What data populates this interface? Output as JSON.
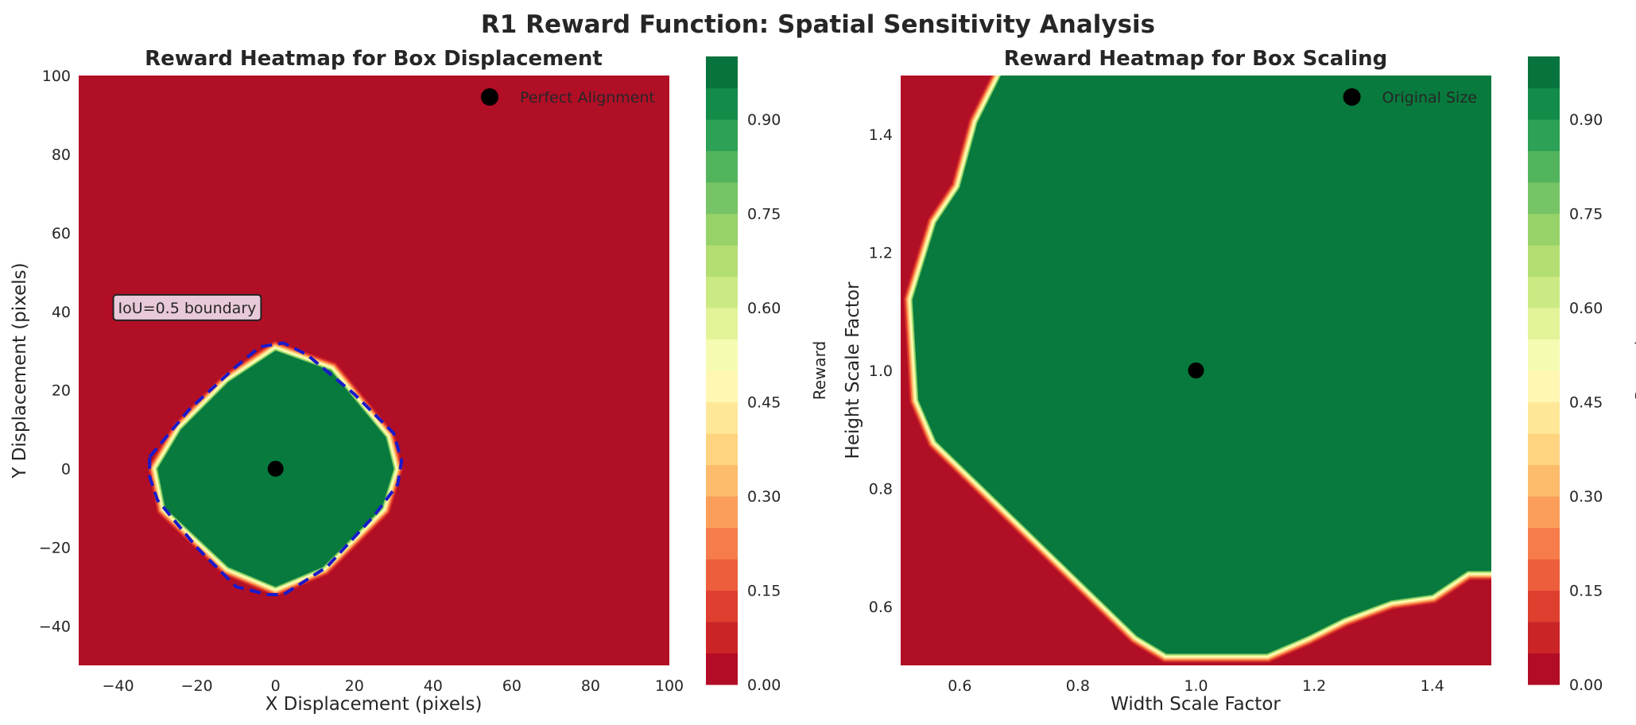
{
  "figure": {
    "title": "R1 Reward Function: Spatial Sensitivity Analysis"
  },
  "colorbar": {
    "label": "Reward",
    "ticks": [
      "0.00",
      "0.15",
      "0.30",
      "0.45",
      "0.60",
      "0.75",
      "0.90"
    ],
    "tick_values": [
      0.0,
      0.15,
      0.3,
      0.45,
      0.6,
      0.75,
      0.9
    ],
    "range": [
      0,
      1
    ],
    "levels": 20
  },
  "colors": {
    "red": "#b10f26",
    "green": "#087a3d",
    "boundary": "#1a1acc",
    "marker": "#000000",
    "colormap": "RdYlGn"
  },
  "chart_data": [
    {
      "type": "heatmap",
      "title": "Reward Heatmap for Box Displacement",
      "xlabel": "X Displacement (pixels)",
      "ylabel": "Y Displacement (pixels)",
      "xlim": [
        -50,
        100
      ],
      "ylim": [
        -50,
        100
      ],
      "xticks": [
        -40,
        -20,
        0,
        20,
        40,
        60,
        80,
        100
      ],
      "yticks": [
        -40,
        -20,
        0,
        20,
        40,
        60,
        80,
        100
      ],
      "xtick_labels": [
        "−40",
        "−20",
        "0",
        "20",
        "40",
        "60",
        "80",
        "100"
      ],
      "ytick_labels": [
        "−40",
        "−20",
        "0",
        "20",
        "40",
        "60",
        "80",
        "100"
      ],
      "reward_region": [
        [
          0,
          30
        ],
        [
          14,
          25
        ],
        [
          28,
          8
        ],
        [
          30,
          0
        ],
        [
          27,
          -10
        ],
        [
          12,
          -25
        ],
        [
          0,
          -30
        ],
        [
          -12,
          -25
        ],
        [
          -28,
          -10
        ],
        [
          -30,
          0
        ],
        [
          -24,
          10
        ],
        [
          -12,
          22
        ]
      ],
      "iou_boundary": [
        [
          -32,
          3
        ],
        [
          -22,
          15
        ],
        [
          -10,
          26
        ],
        [
          -4,
          31
        ],
        [
          2,
          32
        ],
        [
          8,
          29
        ],
        [
          20,
          19
        ],
        [
          30,
          9
        ],
        [
          32,
          2
        ],
        [
          31,
          -4
        ],
        [
          25,
          -12
        ],
        [
          13,
          -25
        ],
        [
          2,
          -32
        ],
        [
          -2,
          -32
        ],
        [
          -10,
          -30
        ],
        [
          -20,
          -20
        ],
        [
          -30,
          -8
        ],
        [
          -32,
          -2
        ],
        [
          -32,
          3
        ]
      ],
      "marker": {
        "x": 0,
        "y": 0,
        "label": "Perfect Alignment"
      },
      "annotation": {
        "text": "IoU=0.5 boundary",
        "x": -40,
        "y": 41
      },
      "grid": false,
      "legend": "top-right"
    },
    {
      "type": "heatmap",
      "title": "Reward Heatmap for Box Scaling",
      "xlabel": "Width Scale Factor",
      "ylabel": "Height Scale Factor",
      "xlim": [
        0.5,
        1.5
      ],
      "ylim": [
        0.5,
        1.5
      ],
      "xticks": [
        0.6,
        0.8,
        1.0,
        1.2,
        1.4
      ],
      "yticks": [
        0.6,
        0.8,
        1.0,
        1.2,
        1.4
      ],
      "xtick_labels": [
        "0.6",
        "0.8",
        "1.0",
        "1.2",
        "1.4"
      ],
      "ytick_labels": [
        "0.6",
        "0.8",
        "1.0",
        "1.2",
        "1.4"
      ],
      "reward_region": [
        [
          0.67,
          1.5
        ],
        [
          1.58,
          1.5
        ],
        [
          1.5,
          1.35
        ],
        [
          1.5,
          0.66
        ],
        [
          1.46,
          0.66
        ],
        [
          1.4,
          0.62
        ],
        [
          1.33,
          0.61
        ],
        [
          1.25,
          0.58
        ],
        [
          1.19,
          0.55
        ],
        [
          1.12,
          0.52
        ],
        [
          0.95,
          0.52
        ],
        [
          0.9,
          0.55
        ],
        [
          0.56,
          0.88
        ],
        [
          0.53,
          0.95
        ],
        [
          0.52,
          1.12
        ],
        [
          0.56,
          1.25
        ],
        [
          0.6,
          1.31
        ],
        [
          0.63,
          1.42
        ]
      ],
      "marker": {
        "x": 1.0,
        "y": 1.0,
        "label": "Original Size"
      },
      "grid": false,
      "legend": "top-right"
    }
  ]
}
